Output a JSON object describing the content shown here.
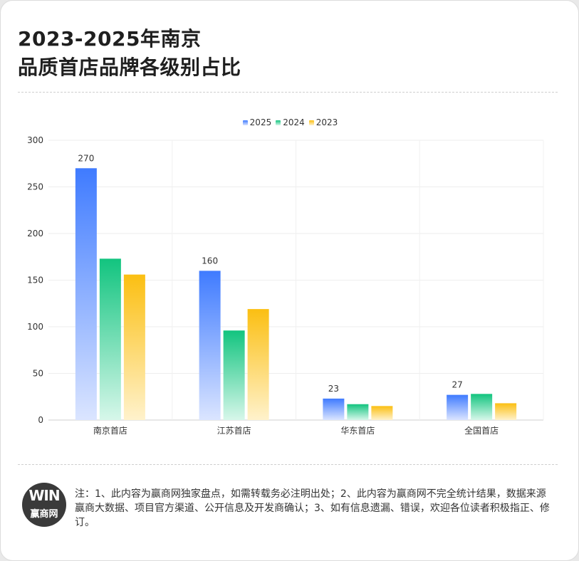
{
  "page": {
    "title_line1": "2023-2025年南京",
    "title_line2": "品质首店品牌各级别占比",
    "note": "注：1、此内容为赢商网独家盘点，如需转载务必注明出处；2、此内容为赢商网不完全统计结果，数据来源赢商大数据、项目官方渠道、公开信息及开发商确认；3、如有信息遗漏、错误，欢迎各位读者积极指正、修订。",
    "logo": {
      "mark": "WIN",
      "name": "赢商网"
    }
  },
  "chart_data": {
    "type": "bar",
    "title": "2023-2025年南京品质首店品牌各级别占比",
    "xlabel": "",
    "ylabel": "",
    "categories": [
      "南京首店",
      "江苏首店",
      "华东首店",
      "全国首店"
    ],
    "series": [
      {
        "name": "2025",
        "values": [
          270,
          160,
          23,
          27
        ],
        "color_top": "#3f7bff",
        "color_bottom": "#dbe5ff",
        "labels": [
          "270",
          "160",
          "23",
          "27"
        ]
      },
      {
        "name": "2024",
        "values": [
          173,
          96,
          17,
          28
        ],
        "color_top": "#12c47f",
        "color_bottom": "#d7f7ea"
      },
      {
        "name": "2023",
        "values": [
          156,
          119,
          15,
          18
        ],
        "color_top": "#fbbf12",
        "color_bottom": "#fff2cc"
      }
    ],
    "yticks": [
      0,
      50,
      100,
      150,
      200,
      250,
      300
    ],
    "ylim": [
      0,
      300
    ],
    "legend_position": "top-center",
    "grid": true
  }
}
